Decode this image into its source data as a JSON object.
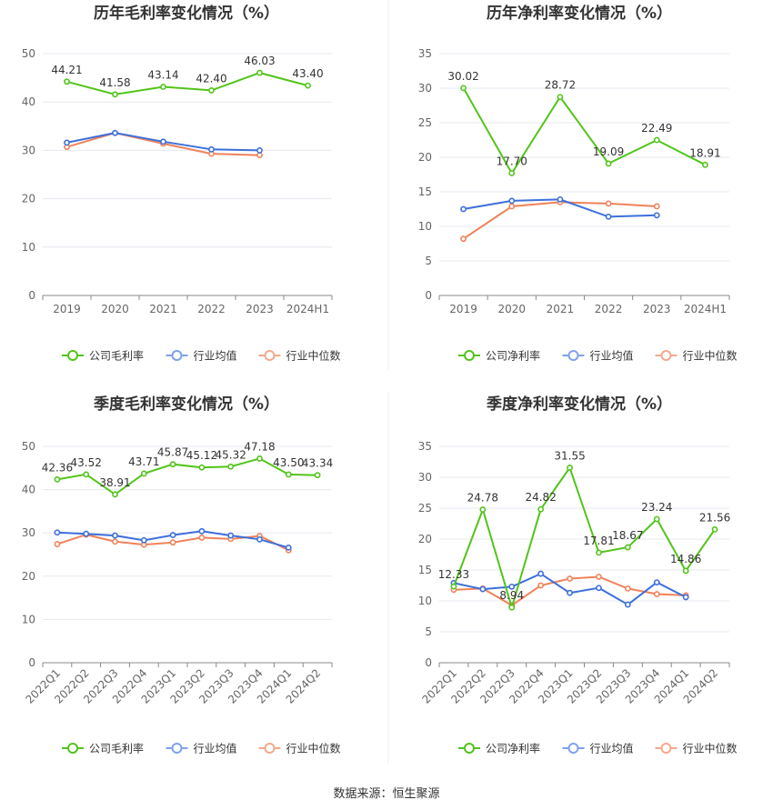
{
  "colors": {
    "company": "#52c41a",
    "industry_avg": "#3d6fdb",
    "industry_median": "#f0825a",
    "grid": "#e6e8f0",
    "axis": "#666666",
    "legend_avg": "#7da2e8",
    "legend_median": "#f2a98d"
  },
  "source": "数据来源：恒生聚源",
  "chart_data": [
    {
      "type": "line",
      "title": "历年毛利率变化情况（%）",
      "categories": [
        "2019",
        "2020",
        "2021",
        "2022",
        "2023",
        "2024H1"
      ],
      "ylim": [
        0,
        50
      ],
      "yticks": [
        0,
        10,
        20,
        30,
        40,
        50
      ],
      "grid": true,
      "legend_position": "bottom",
      "series": [
        {
          "name": "公司毛利率",
          "values": [
            44.21,
            41.58,
            43.14,
            42.4,
            46.03,
            43.4
          ],
          "labels": [
            "44.21",
            "41.58",
            "43.14",
            "42.40",
            "46.03",
            "43.40"
          ]
        },
        {
          "name": "行业均值",
          "values": [
            31.6,
            33.6,
            31.8,
            30.2,
            30.0,
            null
          ]
        },
        {
          "name": "行业中位数",
          "values": [
            30.7,
            33.6,
            31.4,
            29.3,
            29.0,
            null
          ]
        }
      ]
    },
    {
      "type": "line",
      "title": "历年净利率变化情况（%）",
      "categories": [
        "2019",
        "2020",
        "2021",
        "2022",
        "2023",
        "2024H1"
      ],
      "ylim": [
        0,
        35
      ],
      "yticks": [
        0,
        5,
        10,
        15,
        20,
        25,
        30,
        35
      ],
      "grid": true,
      "legend_position": "bottom",
      "series": [
        {
          "name": "公司净利率",
          "values": [
            30.02,
            17.7,
            28.72,
            19.09,
            22.49,
            18.91
          ],
          "labels": [
            "30.02",
            "17.70",
            "28.72",
            "19.09",
            "22.49",
            "18.91"
          ]
        },
        {
          "name": "行业均值",
          "values": [
            12.5,
            13.7,
            13.9,
            11.4,
            11.6,
            null
          ]
        },
        {
          "name": "行业中位数",
          "values": [
            8.2,
            12.9,
            13.5,
            13.3,
            12.9,
            null
          ]
        }
      ]
    },
    {
      "type": "line",
      "title": "季度毛利率变化情况（%）",
      "categories": [
        "2022Q1",
        "2022Q2",
        "2022Q3",
        "2022Q4",
        "2023Q1",
        "2023Q2",
        "2023Q3",
        "2023Q4",
        "2024Q1",
        "2024Q2"
      ],
      "ylim": [
        0,
        50
      ],
      "yticks": [
        0,
        10,
        20,
        30,
        40,
        50
      ],
      "grid": true,
      "legend_position": "bottom",
      "series": [
        {
          "name": "公司毛利率",
          "values": [
            42.36,
            43.52,
            38.91,
            43.71,
            45.87,
            45.12,
            45.32,
            47.18,
            43.5,
            43.34
          ],
          "labels": [
            "42.36",
            "43.52",
            "38.91",
            "43.71",
            "45.87",
            "45.12",
            "45.32",
            "47.18",
            "43.50",
            "43.34"
          ]
        },
        {
          "name": "行业均值",
          "values": [
            30.1,
            29.8,
            29.4,
            28.3,
            29.5,
            30.4,
            29.4,
            28.5,
            26.6,
            null
          ]
        },
        {
          "name": "行业中位数",
          "values": [
            27.4,
            29.6,
            28.0,
            27.3,
            27.8,
            28.9,
            28.6,
            29.3,
            26.0,
            null
          ]
        }
      ]
    },
    {
      "type": "line",
      "title": "季度净利率变化情况（%）",
      "categories": [
        "2022Q1",
        "2022Q2",
        "2022Q3",
        "2022Q4",
        "2023Q1",
        "2023Q2",
        "2023Q3",
        "2023Q4",
        "2024Q1",
        "2024Q2"
      ],
      "ylim": [
        0,
        35
      ],
      "yticks": [
        0,
        5,
        10,
        15,
        20,
        25,
        30,
        35
      ],
      "grid": true,
      "legend_position": "bottom",
      "series": [
        {
          "name": "公司净利率",
          "values": [
            12.33,
            24.78,
            8.94,
            24.82,
            31.55,
            17.81,
            18.67,
            23.24,
            14.86,
            21.56
          ],
          "labels": [
            "12.33",
            "24.78",
            "8.94",
            "24.82",
            "31.55",
            "17.81",
            "18.67",
            "23.24",
            "14.86",
            "21.56"
          ]
        },
        {
          "name": "行业均值",
          "values": [
            12.9,
            11.9,
            12.3,
            14.4,
            11.3,
            12.1,
            9.4,
            13.0,
            10.6,
            null
          ]
        },
        {
          "name": "行业中位数",
          "values": [
            11.8,
            12.0,
            9.3,
            12.5,
            13.6,
            13.9,
            12.0,
            11.1,
            10.9,
            null
          ]
        }
      ]
    }
  ]
}
